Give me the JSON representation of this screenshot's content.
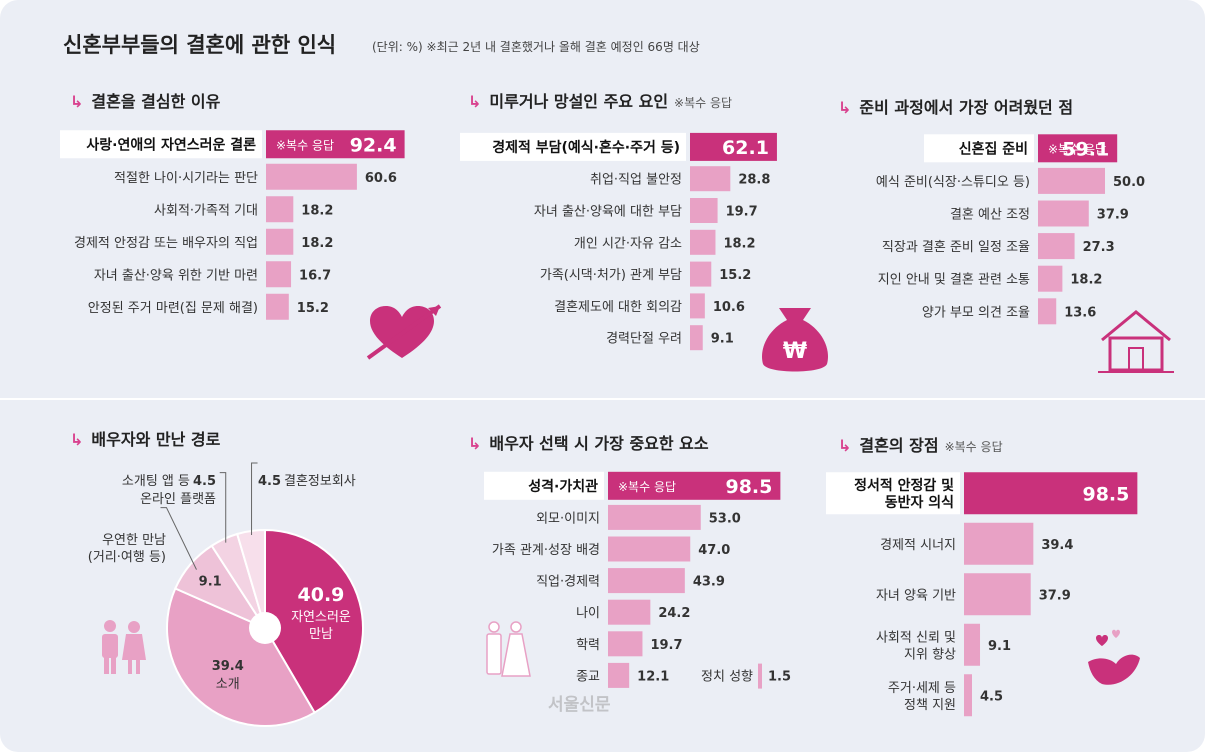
{
  "page": {
    "title": "신혼부부들의 결혼에 관한 인식",
    "subtitle": "(단위: %)  ※최근 2년 내 결혼했거나 올해 결혼 예정인 66명 대상",
    "watermark": "서울신문"
  },
  "colors": {
    "accent": "#c9317b",
    "bar": "#e8a1c5",
    "text": "#333333",
    "background": "#ebeef5"
  },
  "chart_data": [
    {
      "id": "reasons",
      "type": "bar",
      "orientation": "horizontal",
      "title": "결혼을 결심한 이유",
      "categories": [
        "사랑·연애의 자연스러운 결론",
        "적절한 나이·시기라는 판단",
        "사회적·가족적 기대",
        "경제적 안정감 또는 배우자의 직업",
        "자녀 출산·양육 위한 기반 마련",
        "안정된 주거 마련(집 문제 해결)"
      ],
      "values": [
        92.4,
        60.6,
        18.2,
        18.2,
        16.7,
        15.2
      ],
      "value_labels": [
        "92.4",
        "60.6",
        "18.2",
        "18.2",
        "16.7",
        "15.2"
      ],
      "top_note": "※복수 응답",
      "icon": "heart-arrow-icon"
    },
    {
      "id": "delay",
      "type": "bar",
      "orientation": "horizontal",
      "title": "미루거나 망설인 주요 요인",
      "title_note": "※복수 응답",
      "categories": [
        "경제적 부담(예식·혼수·주거 등)",
        "취업·직업 불안정",
        "자녀 출산·양육에 대한 부담",
        "개인 시간·자유 감소",
        "가족(시댁·처가) 관계 부담",
        "결혼제도에 대한 회의감",
        "경력단절 우려"
      ],
      "values": [
        62.1,
        28.8,
        19.7,
        18.2,
        15.2,
        10.6,
        9.1
      ],
      "value_labels": [
        "62.1",
        "28.8",
        "19.7",
        "18.2",
        "15.2",
        "10.6",
        "9.1"
      ],
      "icon": "money-bag-icon",
      "icon_text": "₩"
    },
    {
      "id": "hardest",
      "type": "bar",
      "orientation": "horizontal",
      "title": "준비 과정에서 가장 어려웠던 점",
      "categories": [
        "신혼집 준비",
        "예식 준비(식장·스튜디오 등)",
        "결혼 예산 조정",
        "직장과 결혼 준비 일정 조율",
        "지인 안내 및 결혼 관련 소통",
        "양가 부모 의견 조율"
      ],
      "values": [
        59.1,
        50.0,
        37.9,
        27.3,
        18.2,
        13.6
      ],
      "value_labels": [
        "59.1",
        "50.0",
        "37.9",
        "27.3",
        "18.2",
        "13.6"
      ],
      "top_note": "※복수 응답",
      "icon": "house-icon"
    },
    {
      "id": "route",
      "type": "pie",
      "title": "배우자와 만난 경로",
      "slices": [
        {
          "label": "자연스러운 만남",
          "value": 40.9,
          "value_label": "40.9"
        },
        {
          "label": "소개",
          "value": 39.4,
          "value_label": "39.4"
        },
        {
          "label": "우연한 만남 (거리·여행 등)",
          "label_lines": [
            "우연한 만남",
            "(거리·여행 등)"
          ],
          "value": 9.1,
          "value_label": "9.1"
        },
        {
          "label": "소개팅 앱 등 온라인 플랫폼",
          "label_lines": [
            "소개팅 앱 등",
            "온라인 플랫폼"
          ],
          "value": 4.5,
          "value_label": "4.5"
        },
        {
          "label": "결혼정보회사",
          "value": 4.5,
          "value_label": "4.5"
        }
      ],
      "icon": "couple-icon"
    },
    {
      "id": "factors",
      "type": "bar",
      "orientation": "horizontal",
      "title": "배우자 선택 시 가장 중요한 요소",
      "categories": [
        "성격·가치관",
        "외모·이미지",
        "가족 관계·성장 배경",
        "직업·경제력",
        "나이",
        "학력",
        "종교"
      ],
      "values": [
        98.5,
        53.0,
        47.0,
        43.9,
        24.2,
        19.7,
        12.1
      ],
      "value_labels": [
        "98.5",
        "53.0",
        "47.0",
        "43.9",
        "24.2",
        "19.7",
        "12.1"
      ],
      "top_note": "※복수 응답",
      "extra": {
        "category": "정치 성향",
        "value": 1.5,
        "value_label": "1.5"
      },
      "icon": "bride-groom-icon"
    },
    {
      "id": "merits",
      "type": "bar",
      "orientation": "horizontal",
      "title": "결혼의 장점",
      "title_note": "※복수 응답",
      "categories": [
        "정서적 안정감 및 동반자 의식",
        "경제적 시너지",
        "자녀 양육 기반",
        "사회적 신뢰 및 지위 향상",
        "주거·세제 등 정책 지원"
      ],
      "category_lines": [
        [
          "정서적 안정감 및",
          "동반자 의식"
        ],
        [
          "경제적 시너지"
        ],
        [
          "자녀 양육 기반"
        ],
        [
          "사회적 신뢰 및",
          "지위 향상"
        ],
        [
          "주거·세제 등",
          "정책 지원"
        ]
      ],
      "values": [
        98.5,
        39.4,
        37.9,
        9.1,
        4.5
      ],
      "value_labels": [
        "98.5",
        "39.4",
        "37.9",
        "9.1",
        "4.5"
      ],
      "icon": "bird-hearts-icon"
    }
  ]
}
